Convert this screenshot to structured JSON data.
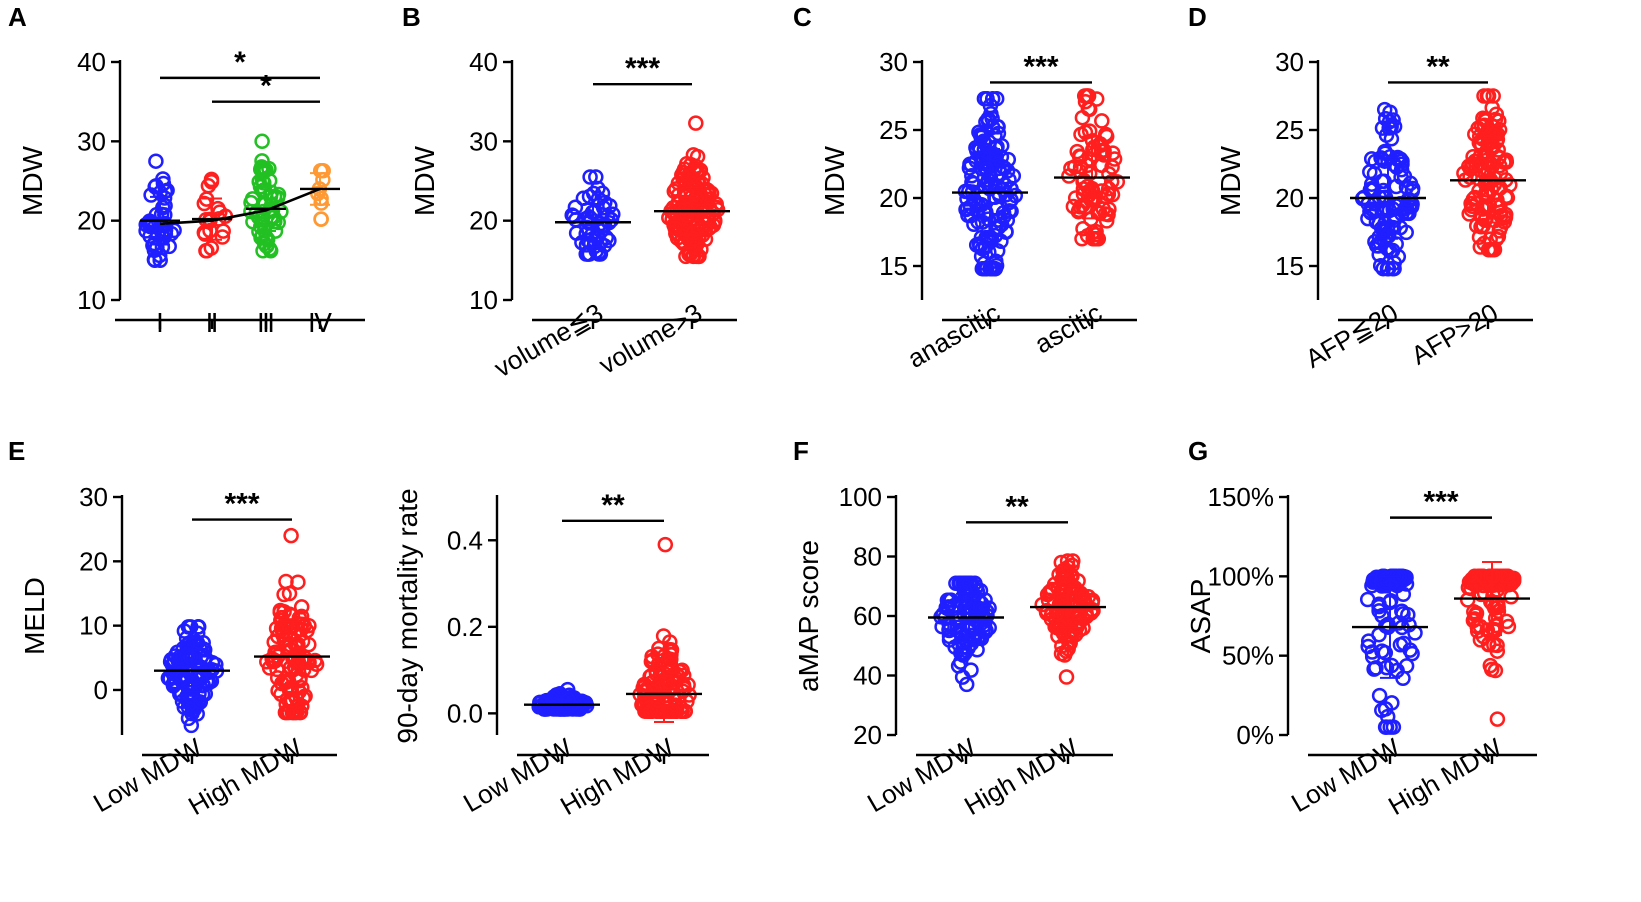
{
  "colors": {
    "blue": "#1f1fff",
    "red": "#ff1f1f",
    "green": "#22c022",
    "orange": "#ff9933"
  },
  "chart_data": [
    {
      "panel": "A",
      "type": "scatter",
      "ylabel": "MDW",
      "ylim": [
        10,
        40
      ],
      "yticks": [
        "10",
        "20",
        "30",
        "40"
      ],
      "categories": [
        "Ⅰ",
        "Ⅱ",
        "Ⅲ",
        "Ⅳ"
      ],
      "groups": [
        {
          "name": "Ⅰ",
          "color": "blue",
          "mean": 20,
          "sd": 3,
          "n": 45,
          "min": 15,
          "max": 27.5,
          "seed": 11
        },
        {
          "name": "Ⅱ",
          "color": "red",
          "mean": 20.2,
          "sd": 2.6,
          "n": 20,
          "min": 16.2,
          "max": 25.2,
          "seed": 12
        },
        {
          "name": "Ⅲ",
          "color": "green",
          "mean": 21.5,
          "sd": 2.8,
          "n": 55,
          "min": 16.2,
          "max": 30,
          "seed": 13
        },
        {
          "name": "Ⅳ",
          "color": "orange",
          "mean": 24,
          "sd": 2,
          "n": 9,
          "min": 20.2,
          "max": 26.3,
          "seed": 14
        }
      ],
      "trend": [
        19.6,
        20,
        21.3,
        24
      ],
      "significance": [
        {
          "from": 0,
          "to": 3,
          "label": "*",
          "y": 38
        },
        {
          "from": 1,
          "to": 3,
          "label": "*",
          "y": 35
        }
      ]
    },
    {
      "panel": "B",
      "type": "scatter",
      "ylabel": "MDW",
      "ylim": [
        10,
        40
      ],
      "yticks": [
        "10",
        "20",
        "30",
        "40"
      ],
      "categories": [
        "volume≦3",
        "volume>3"
      ],
      "groups": [
        {
          "name": "volume≦3",
          "color": "blue",
          "mean": 19.8,
          "sd": 2.3,
          "n": 55,
          "min": 15.8,
          "max": 25.5,
          "seed": 21
        },
        {
          "name": "volume>3",
          "color": "red",
          "mean": 21.2,
          "sd": 3,
          "n": 150,
          "min": 15.5,
          "max": 32.3,
          "seed": 22
        }
      ],
      "significance": [
        {
          "from": 0,
          "to": 1,
          "label": "***",
          "y": 37.2
        }
      ]
    },
    {
      "panel": "C",
      "type": "scatter",
      "ylabel": "MDW",
      "ylim": [
        12.5,
        30
      ],
      "yticks": [
        "15",
        "20",
        "25",
        "30"
      ],
      "categories": [
        "anascitic",
        "ascitic"
      ],
      "groups": [
        {
          "name": "anascitic",
          "color": "blue",
          "mean": 20.4,
          "sd": 3.2,
          "n": 150,
          "min": 14.8,
          "max": 27.3,
          "seed": 31
        },
        {
          "name": "ascitic",
          "color": "red",
          "mean": 21.5,
          "sd": 3,
          "n": 90,
          "min": 17,
          "max": 27.5,
          "seed": 32
        }
      ],
      "significance": [
        {
          "from": 0,
          "to": 1,
          "label": "***",
          "y": 28.5
        }
      ]
    },
    {
      "panel": "D",
      "type": "scatter",
      "ylabel": "MDW",
      "ylim": [
        12.5,
        30
      ],
      "yticks": [
        "15",
        "20",
        "25",
        "30"
      ],
      "categories": [
        "AFP≦20",
        "AFP>20"
      ],
      "groups": [
        {
          "name": "AFP≦20",
          "color": "blue",
          "mean": 20,
          "sd": 3,
          "n": 110,
          "min": 14.8,
          "max": 26.5,
          "seed": 41
        },
        {
          "name": "AFP>20",
          "color": "red",
          "mean": 21.3,
          "sd": 3.1,
          "n": 130,
          "min": 16.2,
          "max": 27.5,
          "seed": 42
        }
      ],
      "significance": [
        {
          "from": 0,
          "to": 1,
          "label": "**",
          "y": 28.5
        }
      ]
    },
    {
      "panel": "E",
      "type": "scatter",
      "ylabel": "MELD",
      "ylim": [
        -7,
        30
      ],
      "yticks": [
        "0",
        "10",
        "20",
        "30"
      ],
      "categories": [
        "Low MDW",
        "High MDW"
      ],
      "groups": [
        {
          "name": "Low MDW",
          "color": "blue",
          "mean": 3,
          "sd": 3.3,
          "n": 120,
          "min": -5.5,
          "max": 9.8,
          "seed": 51
        },
        {
          "name": "High MDW",
          "color": "red",
          "mean": 5.2,
          "sd": 5.5,
          "n": 110,
          "min": -3.5,
          "max": 24,
          "seed": 52
        }
      ],
      "significance": [
        {
          "from": 0,
          "to": 1,
          "label": "***",
          "y": 26.5
        }
      ]
    },
    {
      "panel": "",
      "type": "scatter",
      "ylabel": "90-day mortality rate",
      "ylim": [
        -0.05,
        0.5
      ],
      "yticks": [
        "0.0",
        "0.2",
        "0.4"
      ],
      "categories": [
        "Low MDW",
        "High MDW"
      ],
      "groups": [
        {
          "name": "Low MDW",
          "color": "blue",
          "mean": 0.02,
          "sd": 0.012,
          "n": 110,
          "min": 0.01,
          "max": 0.055,
          "seed": 61
        },
        {
          "name": "High MDW",
          "color": "red",
          "mean": 0.045,
          "sd": 0.065,
          "n": 120,
          "min": 0.005,
          "max": 0.39,
          "seed": 62
        }
      ],
      "significance": [
        {
          "from": 0,
          "to": 1,
          "label": "**",
          "y": 0.445
        }
      ]
    },
    {
      "panel": "F",
      "type": "scatter",
      "ylabel": "aMAP score",
      "ylim": [
        20,
        100
      ],
      "yticks": [
        "20",
        "40",
        "60",
        "80",
        "100"
      ],
      "categories": [
        "Low MDW",
        "High MDW"
      ],
      "groups": [
        {
          "name": "Low MDW",
          "color": "blue",
          "mean": 59.5,
          "sd": 8,
          "n": 110,
          "min": 37,
          "max": 71,
          "seed": 71
        },
        {
          "name": "High MDW",
          "color": "red",
          "mean": 63,
          "sd": 7,
          "n": 120,
          "min": 39.5,
          "max": 78.5,
          "seed": 72
        }
      ],
      "significance": [
        {
          "from": 0,
          "to": 1,
          "label": "**",
          "y": 91.5
        }
      ]
    },
    {
      "panel": "G",
      "type": "scatter",
      "ylabel": "ASAP",
      "ylim": [
        0,
        150
      ],
      "yticks": [
        "0%",
        "50%",
        "100%",
        "150%"
      ],
      "categories": [
        "Low MDW",
        "High MDW"
      ],
      "groups": [
        {
          "name": "Low MDW",
          "color": "blue",
          "mean": 68,
          "sd": 32,
          "n": 110,
          "min": 5,
          "max": 100,
          "seed": 81
        },
        {
          "name": "High MDW",
          "color": "red",
          "mean": 86,
          "sd": 23,
          "n": 120,
          "min": 10,
          "max": 100,
          "seed": 82
        }
      ],
      "significance": [
        {
          "from": 0,
          "to": 1,
          "label": "***",
          "y": 137
        }
      ]
    }
  ]
}
